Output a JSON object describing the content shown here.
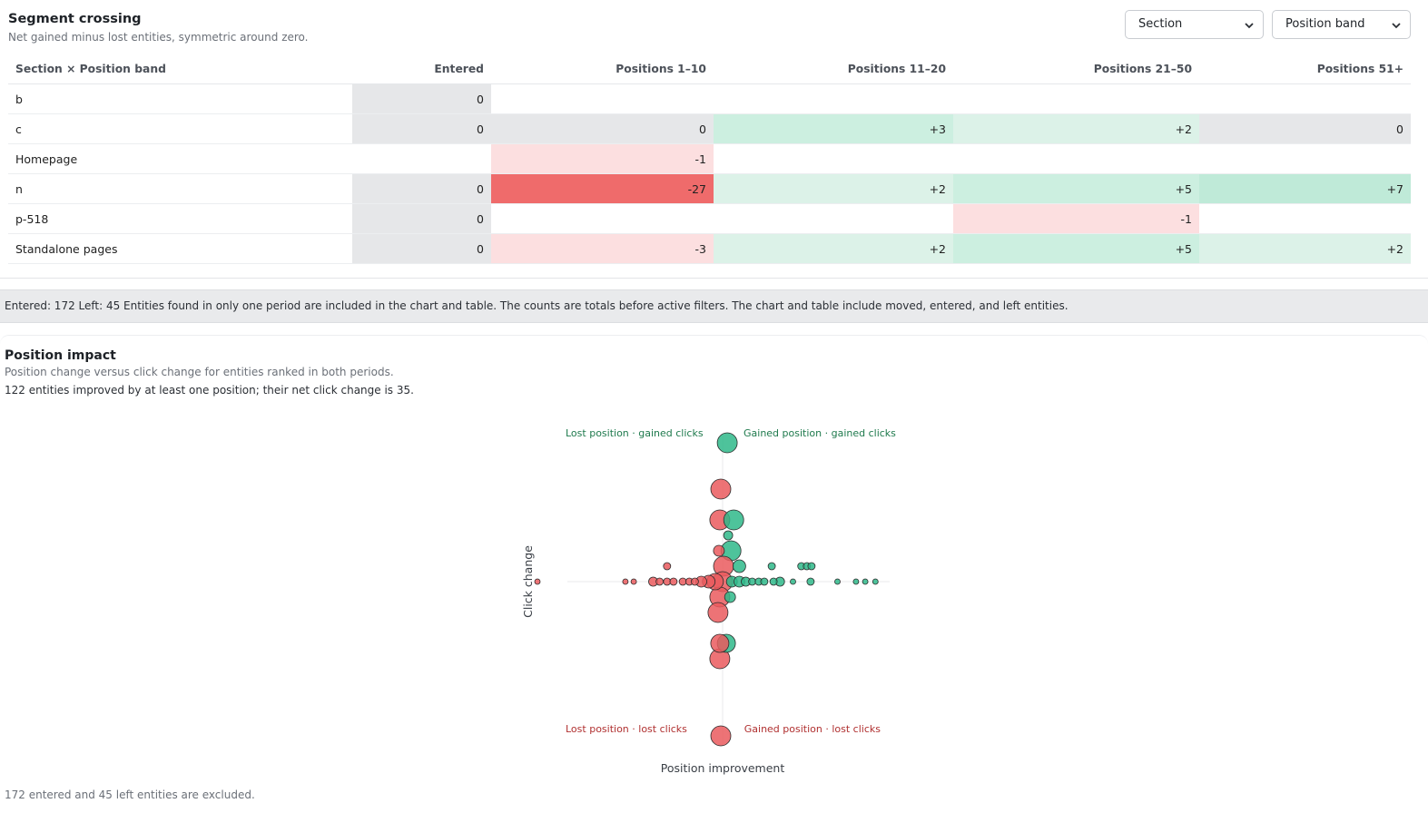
{
  "segment": {
    "title": "Segment crossing",
    "subtitle": "Net gained minus lost entities, symmetric around zero.",
    "dropdowns": {
      "rows": "Section",
      "columns": "Position band"
    },
    "table": {
      "headers": [
        "Section × Position band",
        "Entered",
        "Positions 1–10",
        "Positions 11–20",
        "Positions 21–50",
        "Positions 51+"
      ],
      "rows": [
        {
          "label": "b",
          "cells": [
            "0",
            "",
            "",
            "",
            ""
          ]
        },
        {
          "label": "c",
          "cells": [
            "0",
            "0",
            "+3",
            "+2",
            "0"
          ]
        },
        {
          "label": "Homepage",
          "cells": [
            "",
            "-1",
            "",
            "",
            ""
          ]
        },
        {
          "label": "n",
          "cells": [
            "0",
            "-27",
            "+2",
            "+5",
            "+7"
          ]
        },
        {
          "label": "p-518",
          "cells": [
            "0",
            "",
            "",
            "-1",
            ""
          ]
        },
        {
          "label": "Standalone pages",
          "cells": [
            "0",
            "-3",
            "+2",
            "+5",
            "+2"
          ]
        }
      ]
    },
    "colors": {
      "zero": "#e6e7e9",
      "pos_light": "#dcf2e8",
      "pos_mid": "#ccefe0",
      "pos_strong": "#bfead8",
      "neg_light": "#fcdfe0",
      "neg_strong": "#ef6b6b"
    }
  },
  "note": "Entered: 172 Left: 45 Entities found in only one period are included in the chart and table. The counts are totals before active filters. The chart and table include moved, entered, and left entities.",
  "impact": {
    "title": "Position impact",
    "subtitle": "Position change versus click change for entities ranked in both periods.",
    "summary": "122 entities improved by at least one position; their net click change is 35.",
    "footnote": "172 entered and 45 left entities are excluded."
  },
  "chart_data": {
    "type": "scatter",
    "xlabel": "Position improvement",
    "ylabel": "Click change",
    "quadrants": {
      "top_left": "Lost position · gained clicks",
      "top_right": "Gained position · gained clicks",
      "bottom_left": "Lost position · lost clicks",
      "bottom_right": "Gained position · lost clicks"
    },
    "colors": {
      "improved": "#2fb989",
      "declined": "#ea5a5e",
      "quad_gain": "#1f7a4d",
      "quad_loss": "#b03030"
    },
    "points": [
      {
        "x": 0.5,
        "y": 9,
        "r": 11,
        "s": "g"
      },
      {
        "x": -0.2,
        "y": 6,
        "r": 11,
        "s": "r"
      },
      {
        "x": -0.3,
        "y": 4,
        "r": 11,
        "s": "r"
      },
      {
        "x": 1.2,
        "y": 4,
        "r": 11,
        "s": "g"
      },
      {
        "x": 0.6,
        "y": 3,
        "r": 5,
        "s": "g"
      },
      {
        "x": 0.9,
        "y": 2,
        "r": 11,
        "s": "g"
      },
      {
        "x": -0.4,
        "y": 2,
        "r": 6,
        "s": "r"
      },
      {
        "x": -6,
        "y": 1,
        "r": 4,
        "s": "r"
      },
      {
        "x": 5.3,
        "y": 1,
        "r": 4,
        "s": "g"
      },
      {
        "x": 8.5,
        "y": 1,
        "r": 4,
        "s": "g"
      },
      {
        "x": 9.1,
        "y": 1,
        "r": 4,
        "s": "g"
      },
      {
        "x": 9.6,
        "y": 1,
        "r": 4,
        "s": "g"
      },
      {
        "x": 1.8,
        "y": 1,
        "r": 7,
        "s": "g"
      },
      {
        "x": 0.1,
        "y": 1,
        "r": 11,
        "s": "r"
      },
      {
        "x": -20,
        "y": 0,
        "r": 3,
        "s": "r"
      },
      {
        "x": -10.5,
        "y": 0,
        "r": 3,
        "s": "r"
      },
      {
        "x": -9.6,
        "y": 0,
        "r": 3,
        "s": "r"
      },
      {
        "x": -7.5,
        "y": 0,
        "r": 5,
        "s": "r"
      },
      {
        "x": -6.8,
        "y": 0,
        "r": 4,
        "s": "r"
      },
      {
        "x": -6,
        "y": 0,
        "r": 4,
        "s": "r"
      },
      {
        "x": -5.3,
        "y": 0,
        "r": 4,
        "s": "r"
      },
      {
        "x": -4.3,
        "y": 0,
        "r": 4,
        "s": "r"
      },
      {
        "x": -3.6,
        "y": 0,
        "r": 4,
        "s": "r"
      },
      {
        "x": -3,
        "y": 0,
        "r": 4,
        "s": "r"
      },
      {
        "x": -2.3,
        "y": 0,
        "r": 6,
        "s": "r"
      },
      {
        "x": -1.5,
        "y": 0,
        "r": 7,
        "s": "r"
      },
      {
        "x": -0.8,
        "y": 0,
        "r": 9,
        "s": "r"
      },
      {
        "x": 0,
        "y": 0,
        "r": 11,
        "s": "r"
      },
      {
        "x": 1,
        "y": 0,
        "r": 6,
        "s": "g"
      },
      {
        "x": 1.8,
        "y": 0,
        "r": 6,
        "s": "g"
      },
      {
        "x": 2.5,
        "y": 0,
        "r": 5,
        "s": "g"
      },
      {
        "x": 3.2,
        "y": 0,
        "r": 4,
        "s": "g"
      },
      {
        "x": 3.9,
        "y": 0,
        "r": 4,
        "s": "g"
      },
      {
        "x": 4.5,
        "y": 0,
        "r": 4,
        "s": "g"
      },
      {
        "x": 5.5,
        "y": 0,
        "r": 4,
        "s": "g"
      },
      {
        "x": 6.2,
        "y": 0,
        "r": 5,
        "s": "g"
      },
      {
        "x": 7.6,
        "y": 0,
        "r": 3,
        "s": "g"
      },
      {
        "x": 9.5,
        "y": 0,
        "r": 4,
        "s": "g"
      },
      {
        "x": 12.4,
        "y": 0,
        "r": 3,
        "s": "g"
      },
      {
        "x": 14.4,
        "y": 0,
        "r": 3,
        "s": "g"
      },
      {
        "x": 15.4,
        "y": 0,
        "r": 3,
        "s": "g"
      },
      {
        "x": 16.5,
        "y": 0,
        "r": 3,
        "s": "g"
      },
      {
        "x": -0.3,
        "y": -1,
        "r": 11,
        "s": "r"
      },
      {
        "x": 0.8,
        "y": -1,
        "r": 6,
        "s": "g"
      },
      {
        "x": -0.5,
        "y": -2,
        "r": 11,
        "s": "r"
      },
      {
        "x": 0.4,
        "y": -4,
        "r": 10,
        "s": "g"
      },
      {
        "x": -0.3,
        "y": -4,
        "r": 10,
        "s": "r"
      },
      {
        "x": -0.3,
        "y": -5,
        "r": 11,
        "s": "r"
      },
      {
        "x": -0.2,
        "y": -10,
        "r": 11,
        "s": "r"
      }
    ]
  }
}
